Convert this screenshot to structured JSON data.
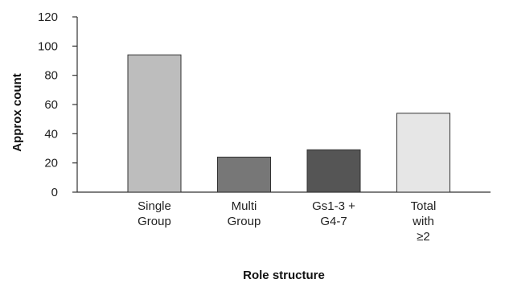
{
  "chart_data": {
    "type": "bar",
    "categories": [
      [
        "Single",
        "Group"
      ],
      [
        "Multi",
        "Group"
      ],
      [
        "Gs1-3 +",
        "G4-7"
      ],
      [
        "Total",
        "with",
        "≥2"
      ]
    ],
    "values": [
      94,
      24,
      29,
      54
    ],
    "bar_colors": [
      "#bdbdbd",
      "#777777",
      "#555555",
      "#e6e6e6"
    ],
    "bar_stroke": "#333333",
    "xlabel": "Role structure",
    "ylabel": "Approx count",
    "ylim": [
      0,
      120
    ],
    "yticks": [
      0,
      20,
      40,
      60,
      80,
      100,
      120
    ],
    "grid": false,
    "legend": "none"
  }
}
